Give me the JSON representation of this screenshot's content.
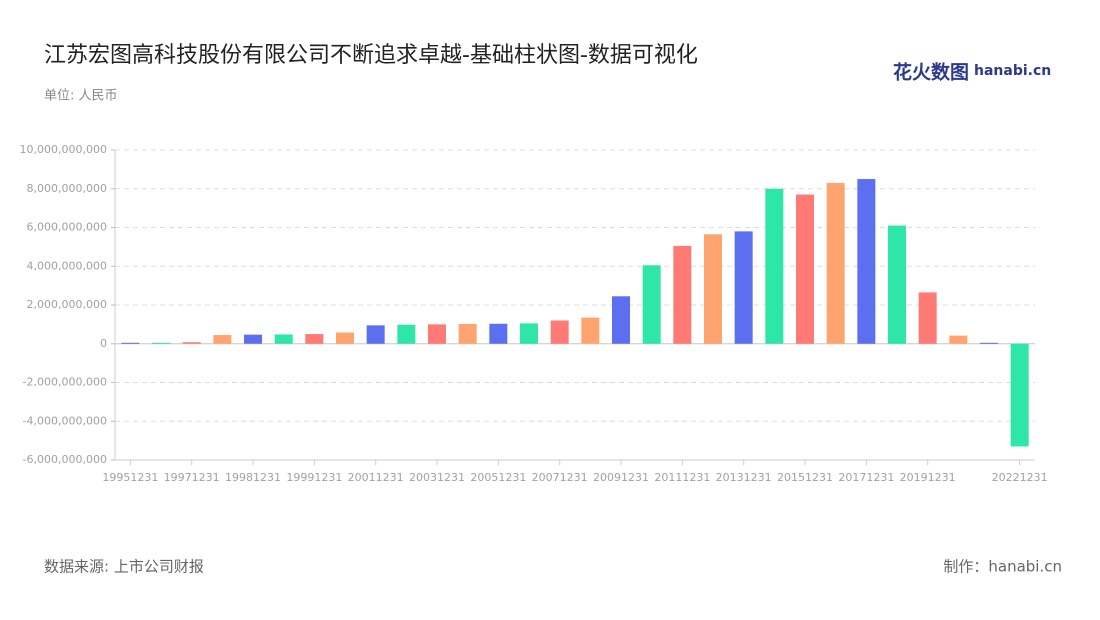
{
  "chart_data": {
    "type": "bar",
    "title": "江苏宏图高科技股份有限公司不断追求卓越-基础柱状图-数据可视化",
    "subtitle": "单位: 人民币",
    "source": "数据来源: 上市公司财报",
    "credit": "制作：hanabi.cn",
    "brand": "花火数图",
    "brand_sub": "hanabi.cn",
    "categories": [
      "19951231",
      null,
      "19971231",
      null,
      "19981231",
      null,
      "19991231",
      null,
      "20011231",
      null,
      "20031231",
      null,
      "20051231",
      null,
      "20071231",
      null,
      "20091231",
      null,
      "20111231",
      null,
      "20131231",
      null,
      "20151231",
      null,
      "20171231",
      null,
      "20191231",
      null,
      null,
      "20221231"
    ],
    "values": [
      50000000,
      50000000,
      80000000,
      450000000,
      470000000,
      480000000,
      500000000,
      580000000,
      950000000,
      980000000,
      1000000000,
      1020000000,
      1030000000,
      1050000000,
      1200000000,
      1350000000,
      2450000000,
      4050000000,
      5050000000,
      5650000000,
      5800000000,
      8000000000,
      7700000000,
      8300000000,
      8500000000,
      6100000000,
      2650000000,
      420000000,
      50000000,
      -5300000000
    ],
    "colors": [
      "#5b6ff0",
      "#2ee6a8",
      "#ff7a75",
      "#ffa46f"
    ],
    "ylim": [
      -6000000000,
      10000000000
    ],
    "yticks": [
      {
        "value": -6000000000,
        "label": "-6,000,000,000"
      },
      {
        "value": -4000000000,
        "label": "-4,000,000,000"
      },
      {
        "value": -2000000000,
        "label": "-2,000,000,000"
      },
      0,
      {
        "value": 2000000000,
        "label": "2,000,000,000"
      },
      {
        "value": 4000000000,
        "label": "4,000,000,000"
      },
      {
        "value": 6000000000,
        "label": "6,000,000,000"
      },
      {
        "value": 8000000000,
        "label": "8,000,000,000"
      },
      {
        "value": 10000000000,
        "label": "10,000,000,000"
      }
    ],
    "grid": true
  }
}
